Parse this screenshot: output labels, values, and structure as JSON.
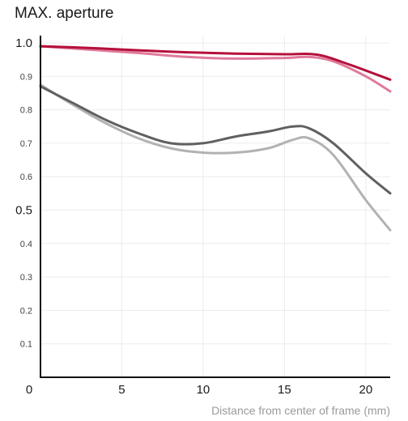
{
  "chart_data": {
    "type": "line",
    "title": "MAX. aperture",
    "xlabel": "Distance from center of frame (mm)",
    "ylabel": "",
    "xlim": [
      0,
      21.5
    ],
    "ylim": [
      0,
      1.0
    ],
    "grid": true,
    "x_ticks": [
      {
        "value": 0,
        "label": "0"
      },
      {
        "value": 5,
        "label": "5"
      },
      {
        "value": 10,
        "label": "10"
      },
      {
        "value": 15,
        "label": "15"
      },
      {
        "value": 20,
        "label": "20"
      }
    ],
    "y_ticks": [
      {
        "value": 0.1,
        "label": "0.1",
        "major": false
      },
      {
        "value": 0.2,
        "label": "0.2",
        "major": false
      },
      {
        "value": 0.3,
        "label": "0.3",
        "major": false
      },
      {
        "value": 0.4,
        "label": "0.4",
        "major": false
      },
      {
        "value": 0.5,
        "label": "0.5",
        "major": true
      },
      {
        "value": 0.6,
        "label": "0.6",
        "major": false
      },
      {
        "value": 0.7,
        "label": "0.7",
        "major": false
      },
      {
        "value": 0.8,
        "label": "0.8",
        "major": false
      },
      {
        "value": 0.9,
        "label": "0.9",
        "major": false
      },
      {
        "value": 1.0,
        "label": "1.0",
        "major": true
      }
    ],
    "series": [
      {
        "color": "#b5103c",
        "x": [
          0,
          3,
          6,
          9,
          12,
          15,
          17,
          19,
          21.5
        ],
        "values": [
          0.99,
          0.985,
          0.978,
          0.972,
          0.968,
          0.966,
          0.965,
          0.935,
          0.89
        ]
      },
      {
        "color": "#e07a9a",
        "x": [
          0,
          3,
          6,
          9,
          12,
          15,
          16.5,
          18,
          20,
          21.5
        ],
        "values": [
          0.99,
          0.98,
          0.97,
          0.958,
          0.953,
          0.955,
          0.958,
          0.945,
          0.9,
          0.855
        ]
      },
      {
        "color": "#606060",
        "x": [
          0,
          2,
          4,
          6,
          8,
          10,
          12,
          14,
          15.5,
          16.5,
          18,
          20,
          21.5
        ],
        "values": [
          0.87,
          0.82,
          0.77,
          0.73,
          0.7,
          0.7,
          0.72,
          0.735,
          0.75,
          0.745,
          0.7,
          0.61,
          0.55
        ]
      },
      {
        "color": "#b2b2b2",
        "x": [
          0,
          2,
          4,
          6,
          8,
          10,
          12,
          14,
          15.5,
          16.5,
          18,
          20,
          21.5
        ],
        "values": [
          0.875,
          0.815,
          0.76,
          0.715,
          0.685,
          0.672,
          0.672,
          0.685,
          0.71,
          0.715,
          0.665,
          0.53,
          0.44
        ]
      }
    ]
  }
}
